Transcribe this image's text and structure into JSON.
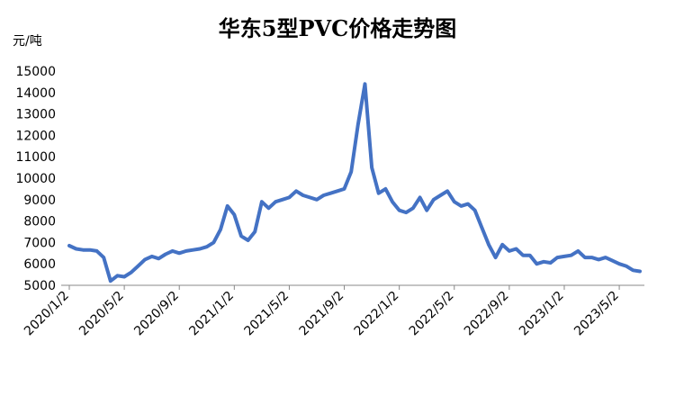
{
  "chart_data": {
    "type": "line",
    "title": "华东5型PVC价格走势图",
    "y_label": "元/吨",
    "categories": [
      "2020/1/2",
      null,
      null,
      null,
      null,
      null,
      null,
      null,
      "2020/5/2",
      null,
      null,
      null,
      null,
      null,
      null,
      null,
      "2020/9/2",
      null,
      null,
      null,
      null,
      null,
      null,
      null,
      "2021/1/2",
      null,
      null,
      null,
      null,
      null,
      null,
      null,
      "2021/5/2",
      null,
      null,
      null,
      null,
      null,
      null,
      null,
      "2021/9/2",
      null,
      null,
      null,
      null,
      null,
      null,
      null,
      "2022/1/2",
      null,
      null,
      null,
      null,
      null,
      null,
      null,
      "2022/5/2",
      null,
      null,
      null,
      null,
      null,
      null,
      null,
      "2022/9/2",
      null,
      null,
      null,
      null,
      null,
      null,
      null,
      "2023/1/2",
      null,
      null,
      null,
      null,
      null,
      null,
      null,
      "2023/5/2",
      null,
      null,
      null
    ],
    "values": [
      6850,
      6700,
      6650,
      6650,
      6600,
      6300,
      5200,
      5450,
      5400,
      5600,
      5900,
      6200,
      6350,
      6250,
      6450,
      6600,
      6500,
      6600,
      6650,
      6700,
      6800,
      7000,
      7600,
      8700,
      8300,
      7300,
      7100,
      7500,
      8900,
      8600,
      8900,
      9000,
      9100,
      9400,
      9200,
      9100,
      9000,
      9200,
      9300,
      9400,
      9500,
      10300,
      12500,
      14400,
      10500,
      9300,
      9500,
      8900,
      8500,
      8400,
      8600,
      9100,
      8500,
      9000,
      9200,
      9400,
      8900,
      8700,
      8800,
      8500,
      7700,
      6900,
      6300,
      6900,
      6600,
      6700,
      6400,
      6400,
      6000,
      6100,
      6050,
      6300,
      6350,
      6400,
      6600,
      6300,
      6300,
      6200,
      6300,
      6150,
      6000,
      5900,
      5700,
      5650
    ],
    "color": "#4472c4",
    "ylim": [
      5000,
      15000
    ],
    "yticks": [
      5000,
      6000,
      7000,
      8000,
      9000,
      10000,
      11000,
      12000,
      13000,
      14000,
      15000
    ],
    "grid": false
  }
}
